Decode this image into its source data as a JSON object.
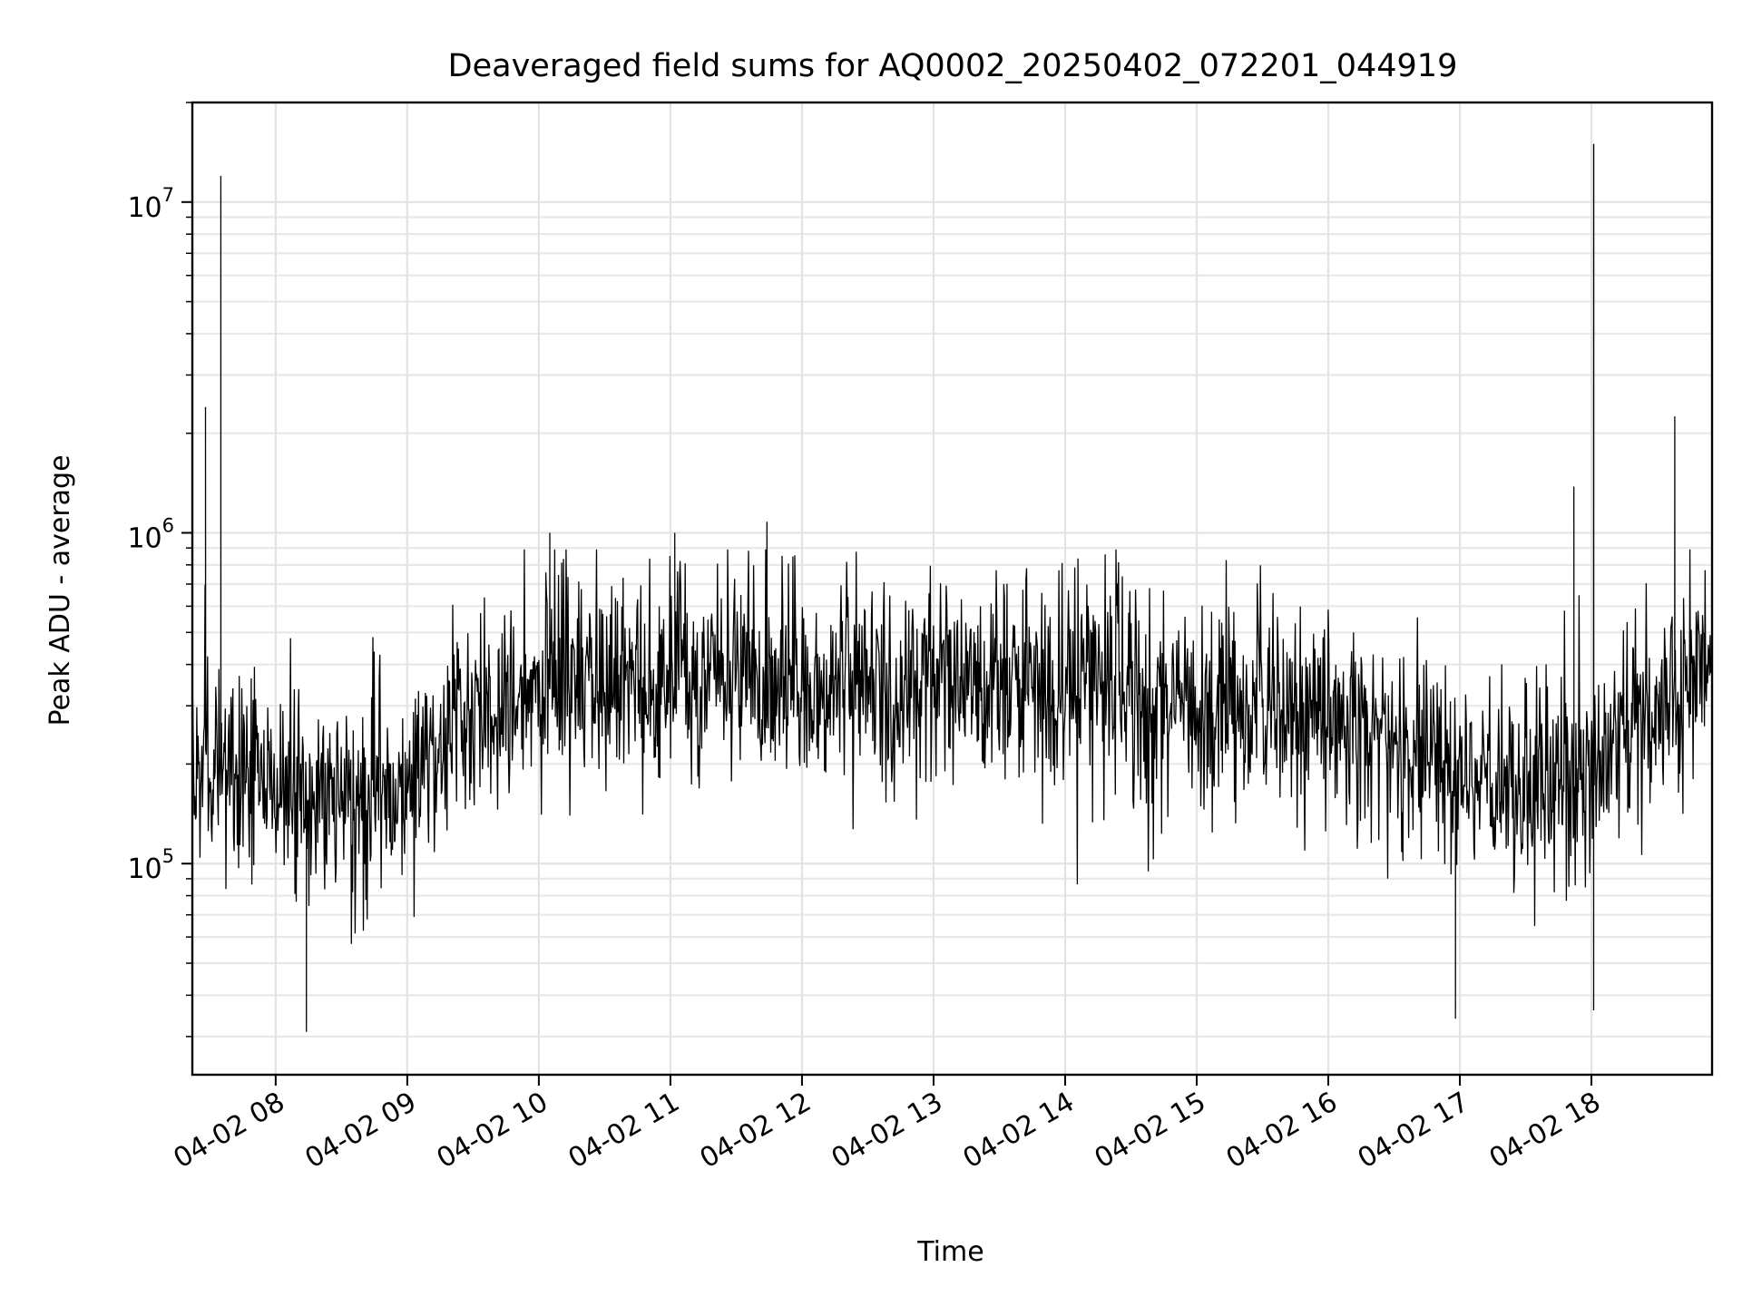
{
  "chart_data": {
    "type": "line",
    "title": "Deaveraged field sums for AQ0002_20250402_072201_044919",
    "xlabel": "Time",
    "ylabel": "Peak ADU - average",
    "yscale": "log",
    "xlim": [
      "2025-04-02 07:22",
      "2025-04-02 18:55"
    ],
    "ylim": [
      23000,
      20000000
    ],
    "x_ticks": [
      "04-02 08",
      "04-02 09",
      "04-02 10",
      "04-02 11",
      "04-02 12",
      "04-02 13",
      "04-02 14",
      "04-02 15",
      "04-02 16",
      "04-02 17",
      "04-02 18"
    ],
    "y_ticks": [
      {
        "value": 100000,
        "base": "10",
        "exp": "5"
      },
      {
        "value": 1000000,
        "base": "10",
        "exp": "6"
      },
      {
        "value": 10000000,
        "base": "10",
        "exp": "7"
      }
    ],
    "grid": true,
    "series": [
      {
        "color": "#000000",
        "x": [
          "2025-04-02 07:22",
          "2025-04-02 07:45",
          "2025-04-02 08:00",
          "2025-04-02 08:30",
          "2025-04-02 08:45",
          "2025-04-02 09:00",
          "2025-04-02 09:30",
          "2025-04-02 10:00",
          "2025-04-02 10:30",
          "2025-04-02 11:00",
          "2025-04-02 11:30",
          "2025-04-02 12:00",
          "2025-04-02 12:30",
          "2025-04-02 13:00",
          "2025-04-02 13:30",
          "2025-04-02 14:00",
          "2025-04-02 14:30",
          "2025-04-02 15:00",
          "2025-04-02 15:30",
          "2025-04-02 16:00",
          "2025-04-02 16:30",
          "2025-04-02 17:00",
          "2025-04-02 17:30",
          "2025-04-02 18:00",
          "2025-04-02 18:30",
          "2025-04-02 18:55"
        ],
        "y": [
          200000,
          190000,
          170000,
          160000,
          150000,
          170000,
          280000,
          340000,
          350000,
          370000,
          380000,
          360000,
          350000,
          360000,
          340000,
          350000,
          330000,
          320000,
          300000,
          280000,
          240000,
          190000,
          180000,
          210000,
          300000,
          360000
        ],
        "spikes": [
          {
            "x": "2025-04-02 07:35",
            "y": 12000000
          },
          {
            "x": "2025-04-02 07:28",
            "y": 2400000
          },
          {
            "x": "2025-04-02 08:14",
            "y": 31000
          },
          {
            "x": "2025-04-02 11:44",
            "y": 1080000
          },
          {
            "x": "2025-04-02 17:52",
            "y": 1380000
          },
          {
            "x": "2025-04-02 18:01",
            "y": 15000000
          },
          {
            "x": "2025-04-02 18:01",
            "y": 36000
          },
          {
            "x": "2025-04-02 16:58",
            "y": 34000
          },
          {
            "x": "2025-04-02 18:38",
            "y": 2250000
          },
          {
            "x": "2025-04-02 10:05",
            "y": 1000000
          },
          {
            "x": "2025-04-02 11:02",
            "y": 1000000
          }
        ]
      }
    ]
  }
}
